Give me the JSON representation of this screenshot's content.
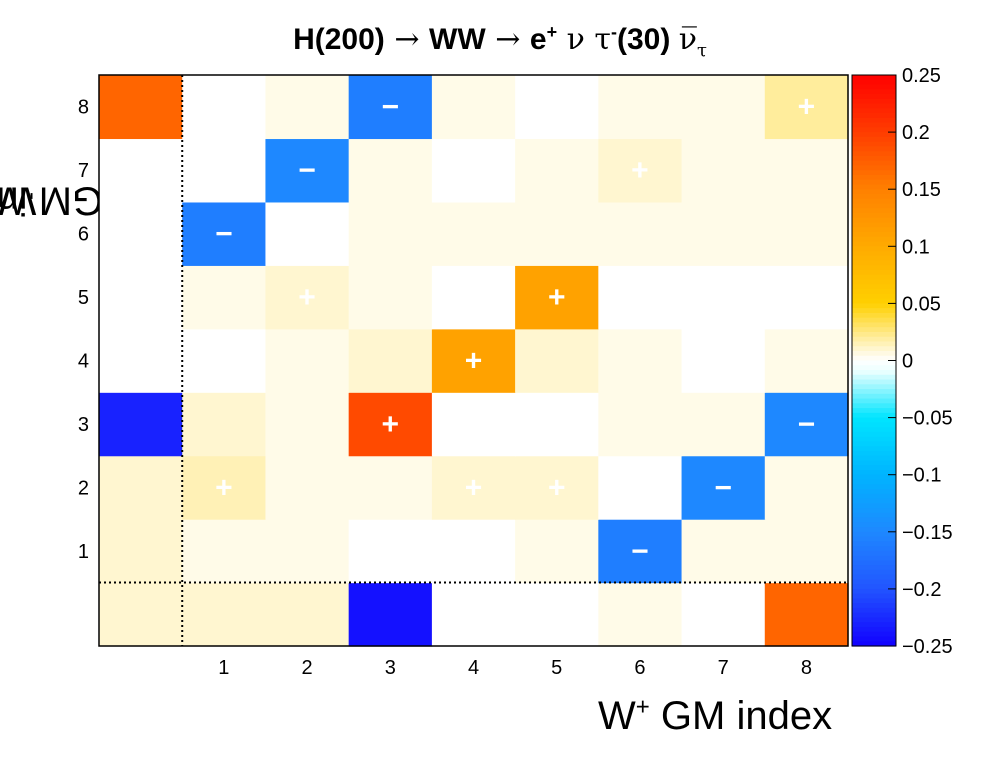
{
  "chart_data": {
    "type": "heatmap",
    "title_parts": {
      "h": "H(200)",
      "arrow1": " → ",
      "ww": "WW",
      "arrow2": " → ",
      "e": "e",
      "e_sup": "+",
      "nu": " ν ",
      "tau": "τ",
      "tau_sup": "-",
      "tau_val": "(30) ",
      "nubar": "ν̅",
      "nubar_sub": "τ"
    },
    "xlabel_parts": {
      "w": "W",
      "sup": "+",
      "rest": " GM index"
    },
    "ylabel_parts": {
      "w": "W",
      "sup": "-",
      "rest": " GM index"
    },
    "x_categories": [
      "",
      "1",
      "2",
      "3",
      "4",
      "5",
      "6",
      "7",
      "8"
    ],
    "y_categories": [
      "",
      "1",
      "2",
      "3",
      "4",
      "5",
      "6",
      "7",
      "8"
    ],
    "zlim": [
      -0.25,
      0.25
    ],
    "colorbar_ticks": [
      "0.25",
      "0.2",
      "0.15",
      "0.1",
      "0.05",
      "0",
      "−0.05",
      "−0.1",
      "−0.15",
      "−0.2",
      "−0.25"
    ],
    "colorbar_values": [
      0.25,
      0.2,
      0.15,
      0.1,
      0.05,
      0,
      -0.05,
      -0.1,
      -0.15,
      -0.2,
      -0.25
    ],
    "values": [
      [
        0.01,
        0.01,
        0.01,
        -0.24,
        0.0,
        0.0,
        0.005,
        0.0,
        0.17
      ],
      [
        0.01,
        0.005,
        0.005,
        0.0,
        0.0,
        0.005,
        -0.16,
        0.005,
        0.005
      ],
      [
        0.01,
        0.015,
        0.005,
        0.005,
        0.01,
        0.01,
        0.0,
        -0.15,
        0.005
      ],
      [
        -0.23,
        0.01,
        0.005,
        0.19,
        0.0,
        0.0,
        0.005,
        0.005,
        -0.15
      ],
      [
        0.0,
        0.0,
        0.005,
        0.01,
        0.11,
        0.01,
        0.005,
        0.0,
        0.005
      ],
      [
        0.0,
        0.005,
        0.01,
        0.005,
        0.0,
        0.11,
        0.0,
        0.0,
        0.0
      ],
      [
        0.0,
        -0.16,
        0.0,
        0.005,
        0.005,
        0.005,
        0.005,
        0.005,
        0.005
      ],
      [
        0.0,
        0.0,
        -0.15,
        0.005,
        0.0,
        0.005,
        0.01,
        0.005,
        0.005
      ],
      [
        0.17,
        0.0,
        0.005,
        -0.16,
        0.005,
        0.0,
        0.005,
        0.005,
        0.02
      ]
    ],
    "signs": [
      [
        "",
        "",
        "",
        "",
        "",
        "",
        "",
        "",
        ""
      ],
      [
        "",
        "",
        "",
        "",
        "",
        "",
        "−",
        "",
        ""
      ],
      [
        "",
        "+",
        "",
        "",
        "+",
        "+",
        "",
        "−",
        ""
      ],
      [
        "",
        "",
        "",
        "+",
        "",
        "",
        "",
        "",
        "−"
      ],
      [
        "",
        "",
        "",
        "",
        "+",
        "",
        "",
        "",
        ""
      ],
      [
        "",
        "",
        "+",
        "",
        "",
        "+",
        "",
        "",
        ""
      ],
      [
        "",
        "−",
        "",
        "",
        "",
        "",
        "",
        "",
        ""
      ],
      [
        "",
        "",
        "−",
        "",
        "",
        "",
        "+",
        "",
        ""
      ],
      [
        "",
        "",
        "",
        "−",
        "",
        "",
        "",
        "",
        "+"
      ]
    ],
    "colorscale": [
      [
        0.25,
        "#ff0000"
      ],
      [
        0.2,
        "#ff3c00"
      ],
      [
        0.15,
        "#ff8000"
      ],
      [
        0.1,
        "#ffaa00"
      ],
      [
        0.05,
        "#ffd000"
      ],
      [
        0.01,
        "#fff6d0"
      ],
      [
        0.0,
        "#ffffff"
      ],
      [
        -0.01,
        "#e8ffff"
      ],
      [
        -0.05,
        "#00e5ff"
      ],
      [
        -0.1,
        "#00b4ff"
      ],
      [
        -0.15,
        "#1e88ff"
      ],
      [
        -0.2,
        "#2255ff"
      ],
      [
        -0.25,
        "#1100ff"
      ]
    ],
    "colors": {
      "strong_positive": "#ff6a00",
      "strong_negative": "#2a10ff",
      "background": "#ffffff"
    },
    "dotted_separators": true,
    "legend": "colorbar-right"
  }
}
